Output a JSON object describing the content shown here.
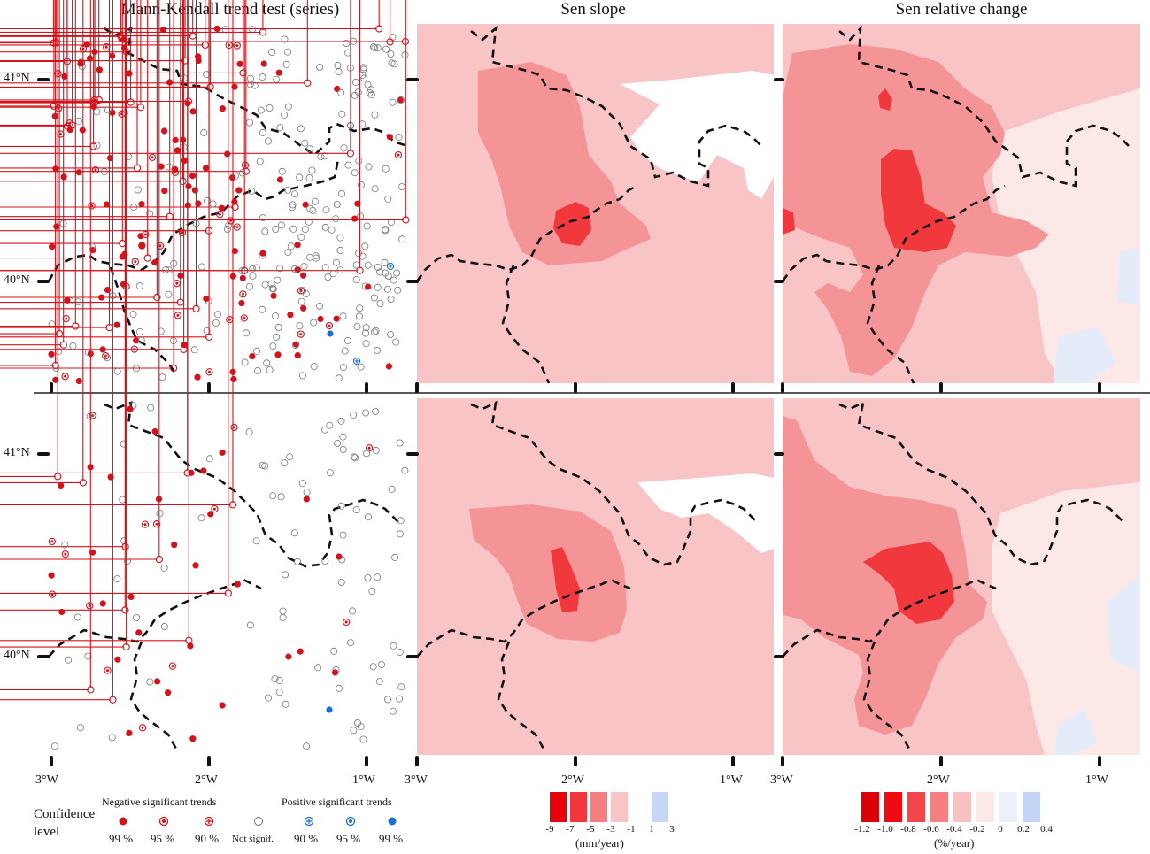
{
  "titles": {
    "mk": "Mann-Kendall trend test (series)",
    "sen": "Sen slope",
    "rel": "Sen relative change"
  },
  "lat_labels": [
    "41°N",
    "40°N"
  ],
  "lon_labels": [
    "3°W",
    "2°W",
    "1°W"
  ],
  "legend": {
    "confidence": "Confidence",
    "level": "level",
    "negative": "Negative significant trends",
    "positive": "Positive significant trends",
    "not_signif": "Not signif.",
    "neg_levels": [
      "99 %",
      "95 %",
      "90 %"
    ],
    "pos_levels": [
      "90 %",
      "95 %",
      "99 %"
    ]
  },
  "sen_scale": {
    "ticks": [
      "-9",
      "-7",
      "-5",
      "-3",
      "-1",
      "1",
      "3"
    ],
    "unit": "(mm/year)",
    "colors": [
      "#e8000b",
      "#f2363c",
      "#f57e80",
      "#f8c4c5",
      "#ffffff",
      "#c7d6f5"
    ]
  },
  "rel_scale": {
    "ticks": [
      "-1.2",
      "-1.0",
      "-0.8",
      "-0.6",
      "-0.4",
      "-0.2",
      "0",
      "0.2",
      "0.4"
    ],
    "unit": "(%/year)",
    "colors": [
      "#dc0008",
      "#f00a12",
      "#f44549",
      "#f77f82",
      "#f9c0c1",
      "#fde8e8",
      "#ecf1fc",
      "#c3d3f6"
    ]
  },
  "map_colors": {
    "light": "#f8c4c5",
    "mid": "#f59496",
    "dark": "#f1393d",
    "pale": "#fde8e8",
    "blue": "#e4ecfa",
    "neg": "#d4121b",
    "pos": "#1c6fd1"
  }
}
